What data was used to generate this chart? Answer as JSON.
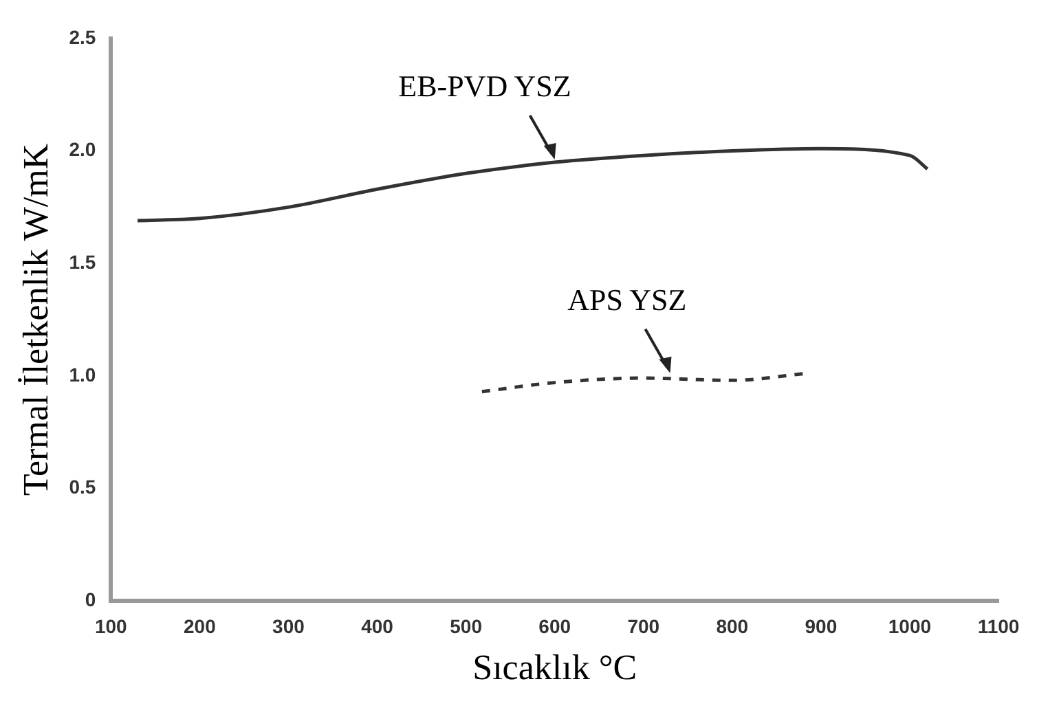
{
  "chart_data": {
    "type": "line",
    "xlabel": "Sıcaklık °C",
    "ylabel": "Termal İletkenlik W/mK",
    "xlim": [
      100,
      1100
    ],
    "xticks": [
      100,
      200,
      300,
      400,
      500,
      600,
      700,
      800,
      900,
      1000,
      1100
    ],
    "ylim": [
      0,
      2.5
    ],
    "yticks": [
      0,
      0.5,
      {
        "value": 1,
        "label": "1.0"
      },
      1.5,
      {
        "value": 2,
        "label": "2.0"
      },
      2.5
    ],
    "grid": false,
    "legend": false,
    "marker": "none",
    "series": [
      {
        "color": "#333333",
        "line_style": "solid",
        "x": [
          130,
          200,
          300,
          400,
          500,
          600,
          700,
          800,
          900,
          1000,
          1020
        ],
        "values": [
          1.69,
          1.7,
          1.75,
          1.83,
          1.9,
          1.95,
          1.98,
          2.0,
          2.01,
          1.98,
          1.92
        ]
      },
      {
        "color": "#333333",
        "line_style": "dashed",
        "x": [
          518,
          600,
          700,
          800,
          882
        ],
        "values": [
          0.93,
          0.97,
          0.99,
          0.98,
          1.01
        ]
      }
    ],
    "annotations": [
      {
        "text": "EB-PVD YSZ",
        "x": 600,
        "y": 1.95
      },
      {
        "text": "APS YSZ",
        "x": 730,
        "y": 1.0
      }
    ]
  }
}
